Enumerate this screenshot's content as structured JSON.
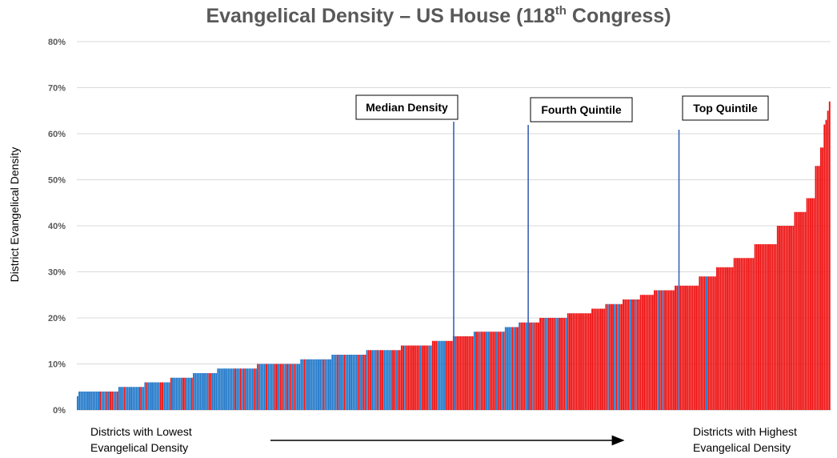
{
  "chart_data": {
    "type": "bar",
    "title": "Evangelical Density – US House (118",
    "title_superscript": "th",
    "title_suffix": " Congress)",
    "ylabel": "District Evangelical Density",
    "ylim": [
      0,
      80
    ],
    "yticks": [
      "0%",
      "10%",
      "20%",
      "30%",
      "40%",
      "50%",
      "60%",
      "70%",
      "80%"
    ],
    "grid": true,
    "legend": "none",
    "x_label_left": [
      "Districts with Lowest",
      "Evangelical Density"
    ],
    "x_label_right": [
      "Districts with Highest",
      "Evangelical Density"
    ],
    "district_count": 435,
    "colors": {
      "democrat": "#1f77c9",
      "republican": "#ee1111",
      "marker_line": "#3b62b5",
      "grid": "#d9d9d9"
    },
    "quantile_markers": [
      {
        "label": "Median Density",
        "district_rank": 218
      },
      {
        "label": "Fourth Quintile",
        "district_rank": 261
      },
      {
        "label": "Top Quintile",
        "district_rank": 348
      }
    ],
    "density_profile": [
      {
        "rank": 1,
        "value": 3
      },
      {
        "rank": 2,
        "value": 4
      },
      {
        "rank": 25,
        "value": 5
      },
      {
        "rank": 40,
        "value": 6
      },
      {
        "rank": 55,
        "value": 7
      },
      {
        "rank": 68,
        "value": 8
      },
      {
        "rank": 82,
        "value": 9
      },
      {
        "rank": 105,
        "value": 10
      },
      {
        "rank": 130,
        "value": 11
      },
      {
        "rank": 148,
        "value": 12
      },
      {
        "rank": 168,
        "value": 13
      },
      {
        "rank": 188,
        "value": 14
      },
      {
        "rank": 206,
        "value": 15
      },
      {
        "rank": 218,
        "value": 16
      },
      {
        "rank": 230,
        "value": 17
      },
      {
        "rank": 248,
        "value": 18
      },
      {
        "rank": 256,
        "value": 19
      },
      {
        "rank": 268,
        "value": 20
      },
      {
        "rank": 284,
        "value": 21
      },
      {
        "rank": 298,
        "value": 22
      },
      {
        "rank": 306,
        "value": 23
      },
      {
        "rank": 316,
        "value": 24
      },
      {
        "rank": 326,
        "value": 25
      },
      {
        "rank": 334,
        "value": 26
      },
      {
        "rank": 346,
        "value": 27
      },
      {
        "rank": 360,
        "value": 29
      },
      {
        "rank": 370,
        "value": 31
      },
      {
        "rank": 380,
        "value": 33
      },
      {
        "rank": 392,
        "value": 36
      },
      {
        "rank": 405,
        "value": 40
      },
      {
        "rank": 415,
        "value": 43
      },
      {
        "rank": 422,
        "value": 46
      },
      {
        "rank": 427,
        "value": 53
      },
      {
        "rank": 430,
        "value": 57
      },
      {
        "rank": 432,
        "value": 62
      },
      {
        "rank": 433,
        "value": 63
      },
      {
        "rank": 434,
        "value": 65
      },
      {
        "rank": 435,
        "value": 67
      }
    ],
    "democrat_share_profile": [
      {
        "rank": 1,
        "share": 0.85
      },
      {
        "rank": 100,
        "share": 0.8
      },
      {
        "rank": 200,
        "share": 0.45
      },
      {
        "rank": 260,
        "share": 0.25
      },
      {
        "rank": 330,
        "share": 0.12
      },
      {
        "rank": 380,
        "share": 0.04
      },
      {
        "rank": 435,
        "share": 0.0
      }
    ]
  }
}
